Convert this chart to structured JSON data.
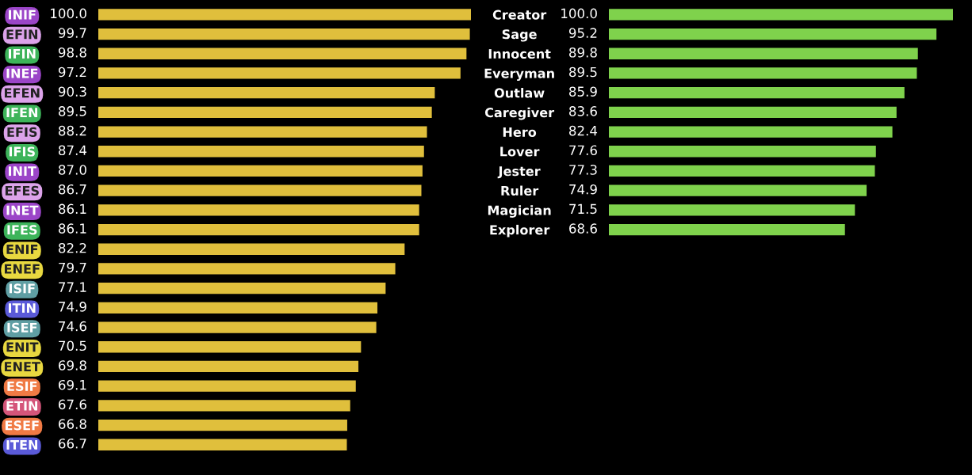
{
  "chart_data": [
    {
      "type": "bar",
      "orientation": "horizontal",
      "tick_labels": "y",
      "color": "#e0bf3c",
      "categories": [
        "INIF",
        "EFIN",
        "IFIN",
        "INEF",
        "EFEN",
        "IFEN",
        "EFIS",
        "IFIS",
        "INIT",
        "EFES",
        "INET",
        "IFES",
        "ENIF",
        "ENEF",
        "ISIF",
        "ITIN",
        "ISEF",
        "ENIT",
        "ENET",
        "ESIF",
        "ETIN",
        "ESEF",
        "ITEN"
      ],
      "values": [
        100.0,
        99.7,
        98.8,
        97.2,
        90.3,
        89.5,
        88.2,
        87.4,
        87.0,
        86.7,
        86.1,
        86.1,
        82.2,
        79.7,
        77.1,
        74.9,
        74.6,
        70.5,
        69.8,
        69.1,
        67.6,
        66.8,
        66.7
      ],
      "value_labels": [
        "100.0",
        "99.7",
        "98.8",
        "97.2",
        "90.3",
        "89.5",
        "88.2",
        "87.4",
        "87.0",
        "86.7",
        "86.1",
        "86.1",
        "82.2",
        "79.7",
        "77.1",
        "74.9",
        "74.6",
        "70.5",
        "69.8",
        "69.1",
        "67.6",
        "66.8",
        "66.7"
      ]
    },
    {
      "type": "bar",
      "orientation": "horizontal",
      "tick_labels": "y",
      "color": "#7fd24c",
      "categories": [
        "Creator",
        "Sage",
        "Innocent",
        "Everyman",
        "Outlaw",
        "Caregiver",
        "Hero",
        "Lover",
        "Jester",
        "Ruler",
        "Magician",
        "Explorer"
      ],
      "values": [
        100.0,
        95.2,
        89.8,
        89.5,
        85.9,
        83.6,
        82.4,
        77.6,
        77.3,
        74.9,
        71.5,
        68.6
      ],
      "value_labels": [
        "100.0",
        "95.2",
        "89.8",
        "89.5",
        "85.9",
        "83.6",
        "82.4",
        "77.6",
        "77.3",
        "74.9",
        "71.5",
        "68.6"
      ]
    }
  ]
}
